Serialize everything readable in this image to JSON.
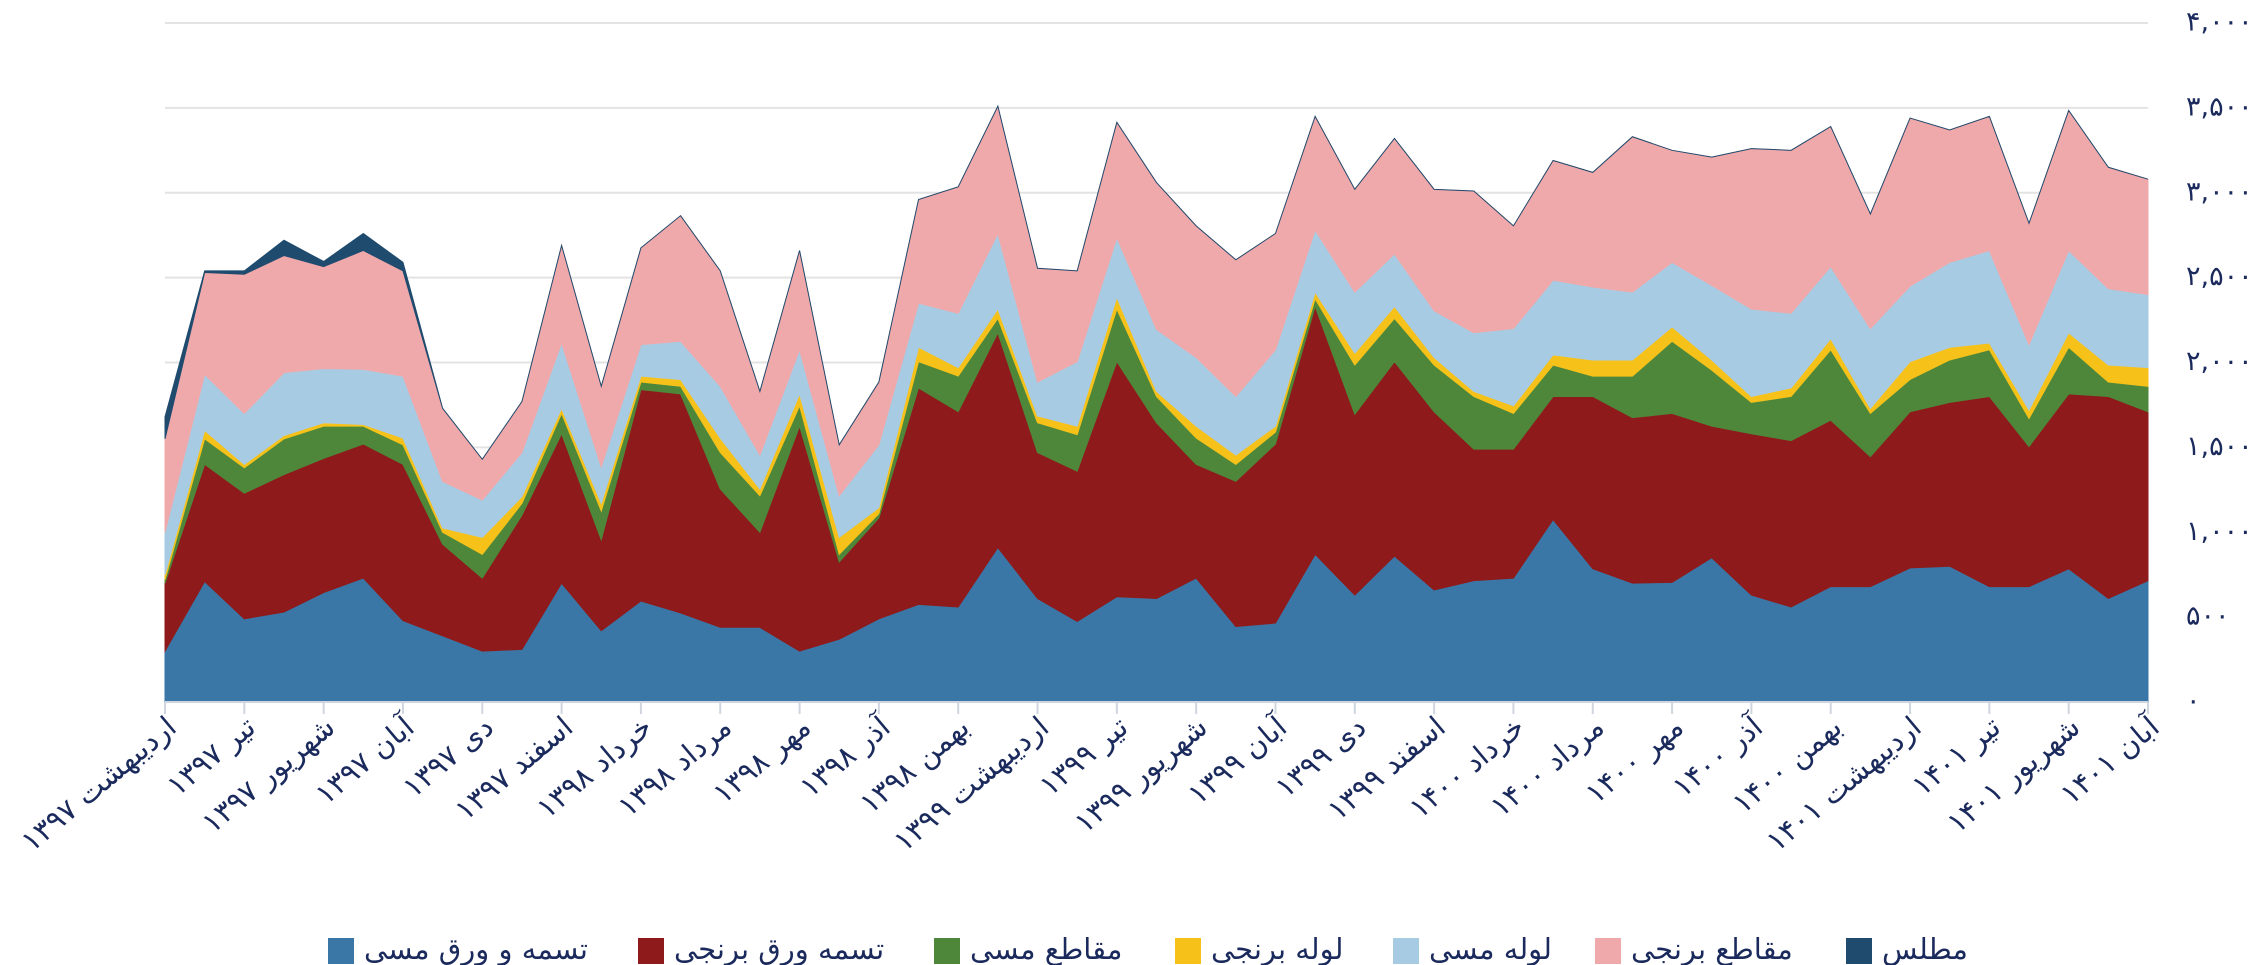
{
  "chart_data": {
    "type": "stacked_area",
    "categories": [
      "اردیبهشت ۱۳۹۷",
      null,
      "تیر ۱۳۹۷",
      null,
      "شهریور ۱۳۹۷",
      null,
      "آبان ۱۳۹۷",
      null,
      "دی ۱۳۹۷",
      null,
      "اسفند ۱۳۹۷",
      null,
      "خرداد ۱۳۹۸",
      null,
      "مرداد ۱۳۹۸",
      null,
      "مهر ۱۳۹۸",
      null,
      "آذر ۱۳۹۸",
      null,
      "بهمن ۱۳۹۸",
      null,
      "اردیبهشت ۱۳۹۹",
      null,
      "تیر ۱۳۹۹",
      null,
      "شهریور ۱۳۹۹",
      null,
      "آبان ۱۳۹۹",
      null,
      "دی ۱۳۹۹",
      null,
      "اسفند ۱۳۹۹",
      null,
      "خرداد ۱۴۰۰",
      null,
      "مرداد ۱۴۰۰",
      null,
      "مهر ۱۴۰۰",
      null,
      "آذر ۱۴۰۰",
      null,
      "بهمن ۱۴۰۰",
      null,
      "اردیبهشت ۱۴۰۱",
      null,
      "تیر ۱۴۰۱",
      null,
      "شهریور ۱۴۰۱",
      null,
      "آبان ۱۴۰۱"
    ],
    "series": [
      {
        "name": "تسمه و ورق مسی",
        "color": "#3a77a7",
        "values": [
          300,
          710,
          490,
          530,
          645,
          730,
          480,
          390,
          300,
          310,
          700,
          420,
          595,
          525,
          440,
          440,
          300,
          370,
          490,
          575,
          560,
          910,
          610,
          475,
          620,
          610,
          730,
          445,
          465,
          870,
          630,
          860,
          660,
          715,
          730,
          1075,
          785,
          700,
          705,
          850,
          630,
          560,
          680,
          680,
          790,
          800,
          680,
          680,
          785,
          610,
          715
        ]
      },
      {
        "name": "تسمه ورق برنجی",
        "color": "#8e1a1b",
        "values": [
          400,
          690,
          740,
          810,
          790,
          790,
          920,
          540,
          430,
          790,
          880,
          535,
          1245,
          1290,
          815,
          560,
          1325,
          455,
          595,
          1275,
          1150,
          1265,
          860,
          885,
          1385,
          1035,
          670,
          855,
          1055,
          1460,
          1065,
          1145,
          1050,
          775,
          760,
          725,
          1015,
          975,
          995,
          775,
          950,
          980,
          980,
          765,
          920,
          965,
          1120,
          825,
          1030,
          1190,
          995
        ]
      },
      {
        "name": "مقاطع مسی",
        "color": "#4e873a",
        "values": [
          20,
          150,
          150,
          210,
          190,
          105,
          115,
          70,
          140,
          70,
          120,
          170,
          45,
          45,
          215,
          215,
          120,
          45,
          25,
          155,
          210,
          85,
          175,
          215,
          310,
          155,
          155,
          100,
          70,
          45,
          290,
          255,
          275,
          310,
          210,
          185,
          120,
          245,
          425,
          330,
          185,
          260,
          415,
          255,
          190,
          250,
          275,
          165,
          275,
          85,
          150
        ]
      },
      {
        "name": "لوله برنجی",
        "color": "#f6c21a",
        "values": [
          30,
          50,
          20,
          20,
          20,
          10,
          40,
          25,
          100,
          40,
          30,
          45,
          35,
          40,
          85,
          40,
          70,
          100,
          35,
          85,
          50,
          55,
          40,
          50,
          70,
          30,
          70,
          55,
          35,
          40,
          70,
          70,
          45,
          30,
          45,
          60,
          95,
          95,
          85,
          60,
          35,
          50,
          65,
          30,
          105,
          75,
          40,
          50,
          85,
          100,
          110
        ]
      },
      {
        "name": "لوله مسی",
        "color": "#a8cbe4",
        "values": [
          250,
          330,
          300,
          370,
          320,
          325,
          365,
          275,
          220,
          260,
          385,
          215,
          185,
          225,
          305,
          200,
          260,
          245,
          370,
          260,
          320,
          445,
          200,
          380,
          350,
          365,
          405,
          345,
          450,
          365,
          360,
          310,
          275,
          345,
          455,
          440,
          430,
          400,
          380,
          440,
          515,
          440,
          425,
          470,
          445,
          500,
          545,
          385,
          485,
          450,
          430
        ]
      },
      {
        "name": "مقاطع برنجی",
        "color": "#f0a9aa",
        "values": [
          550,
          600,
          820,
          690,
          600,
          700,
          620,
          430,
          240,
          300,
          575,
          475,
          570,
          740,
          680,
          375,
          585,
          300,
          370,
          610,
          745,
          750,
          670,
          535,
          680,
          865,
          775,
          805,
          685,
          670,
          605,
          680,
          715,
          835,
          605,
          705,
          675,
          915,
          660,
          755,
          945,
          960,
          825,
          675,
          990,
          780,
          790,
          715,
          825,
          715,
          680
        ]
      },
      {
        "name": "مطلس",
        "color": "#1f4b6e",
        "values": [
          130,
          10,
          20,
          90,
          30,
          100,
          50,
          0,
          0,
          0,
          0,
          0,
          0,
          0,
          0,
          0,
          0,
          0,
          0,
          0,
          0,
          0,
          0,
          0,
          0,
          0,
          0,
          0,
          0,
          0,
          0,
          0,
          0,
          0,
          0,
          0,
          0,
          0,
          0,
          0,
          0,
          0,
          0,
          0,
          0,
          0,
          0,
          0,
          0,
          0,
          0
        ]
      }
    ],
    "ylim": [
      0,
      4000
    ],
    "yticks": [
      {
        "value": 0,
        "label": "۰"
      },
      {
        "value": 500,
        "label": "۵۰۰"
      },
      {
        "value": 1000,
        "label": "۱,۰۰۰"
      },
      {
        "value": 1500,
        "label": "۱,۵۰۰"
      },
      {
        "value": 2000,
        "label": "۲,۰۰۰"
      },
      {
        "value": 2500,
        "label": "۲,۵۰۰"
      },
      {
        "value": 3000,
        "label": "۳,۰۰۰"
      },
      {
        "value": 3500,
        "label": "۳,۵۰۰"
      },
      {
        "value": 4000,
        "label": "۴,۰۰۰"
      }
    ],
    "grid": true
  }
}
